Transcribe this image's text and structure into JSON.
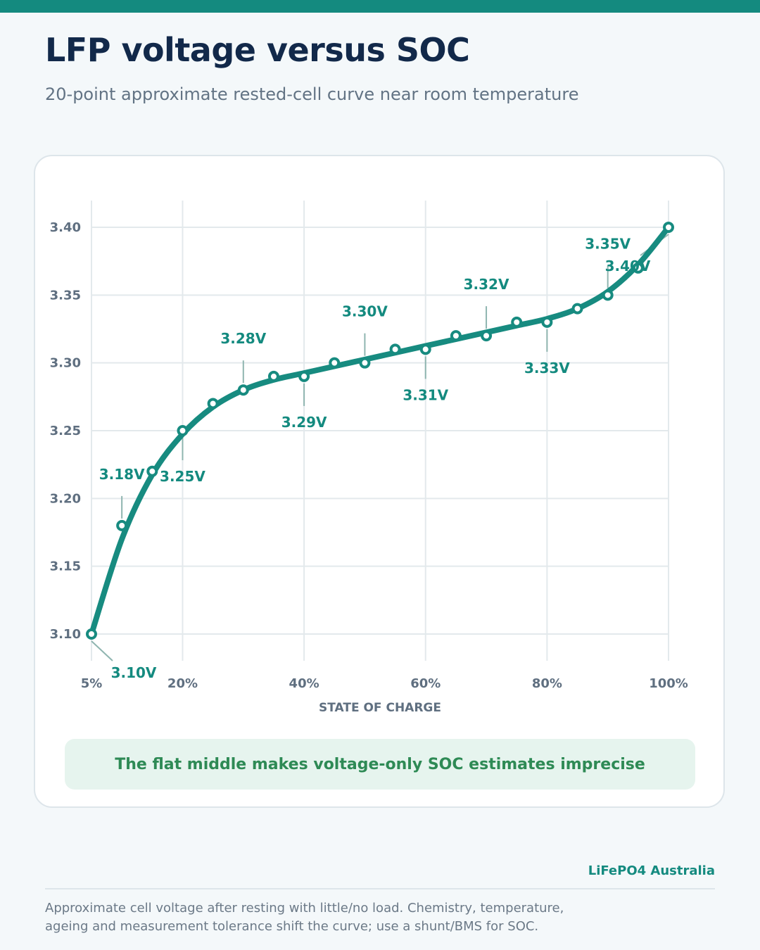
{
  "title": "LFP voltage versus SOC",
  "subtitle": "20-point approximate rested-cell curve near room temperature",
  "callout": "The flat middle makes voltage-only SOC estimates imprecise",
  "brand": "LiFePO4 Australia",
  "footnote": "Approximate cell voltage after resting with little/no load. Chemistry, temperature, ageing and measurement tolerance shift the curve; use a shunt/BMS for SOC.",
  "colors": {
    "accent": "#148a7f",
    "title": "#12294a",
    "callout_bg": "#e6f4ee",
    "callout_text": "#2e8a55"
  },
  "chart_data": {
    "type": "line",
    "xlabel": "STATE OF CHARGE",
    "ylabel": "",
    "xlim": [
      5,
      100
    ],
    "ylim": [
      3.1,
      3.4
    ],
    "x_ticks": [
      5,
      20,
      40,
      60,
      80,
      100
    ],
    "x_tick_labels": [
      "5%",
      "20%",
      "40%",
      "60%",
      "80%",
      "100%"
    ],
    "y_ticks": [
      3.1,
      3.15,
      3.2,
      3.25,
      3.3,
      3.35,
      3.4
    ],
    "y_tick_labels": [
      "3.10",
      "3.15",
      "3.20",
      "3.25",
      "3.30",
      "3.35",
      "3.40"
    ],
    "grid": true,
    "x": [
      5,
      10,
      15,
      20,
      25,
      30,
      35,
      40,
      45,
      50,
      55,
      60,
      65,
      70,
      75,
      80,
      85,
      90,
      95,
      100
    ],
    "y": [
      3.1,
      3.18,
      3.22,
      3.25,
      3.27,
      3.28,
      3.29,
      3.29,
      3.3,
      3.3,
      3.31,
      3.31,
      3.32,
      3.32,
      3.33,
      3.33,
      3.34,
      3.35,
      3.37,
      3.4
    ],
    "annotations": [
      {
        "x": 5,
        "y": 3.1,
        "text": "3.10V",
        "pos": "below"
      },
      {
        "x": 10,
        "y": 3.18,
        "text": "3.18V",
        "pos": "above"
      },
      {
        "x": 20,
        "y": 3.25,
        "text": "3.25V",
        "pos": "below"
      },
      {
        "x": 30,
        "y": 3.28,
        "text": "3.28V",
        "pos": "above"
      },
      {
        "x": 40,
        "y": 3.29,
        "text": "3.29V",
        "pos": "below"
      },
      {
        "x": 50,
        "y": 3.3,
        "text": "3.30V",
        "pos": "above"
      },
      {
        "x": 60,
        "y": 3.31,
        "text": "3.31V",
        "pos": "below"
      },
      {
        "x": 70,
        "y": 3.32,
        "text": "3.32V",
        "pos": "above"
      },
      {
        "x": 80,
        "y": 3.33,
        "text": "3.33V",
        "pos": "below"
      },
      {
        "x": 90,
        "y": 3.35,
        "text": "3.35V",
        "pos": "above"
      },
      {
        "x": 100,
        "y": 3.4,
        "text": "3.40V",
        "pos": "below"
      }
    ]
  }
}
